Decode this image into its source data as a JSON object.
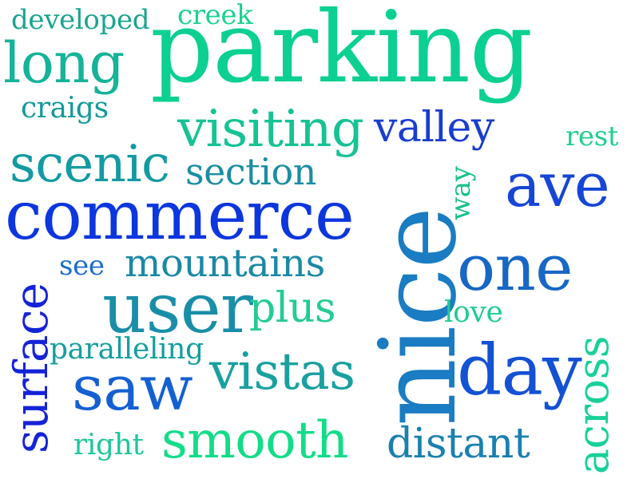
{
  "words": [
    {
      "text": "developed",
      "color": "#1aa58f"
    },
    {
      "text": "creek",
      "color": "#19d38e"
    },
    {
      "text": "parking",
      "color": "#0bd092"
    },
    {
      "text": "long",
      "color": "#15b399"
    },
    {
      "text": "craigs",
      "color": "#139a9a"
    },
    {
      "text": "visiting",
      "color": "#16c394"
    },
    {
      "text": "valley",
      "color": "#1a3dcf"
    },
    {
      "text": "rest",
      "color": "#1fcf8b"
    },
    {
      "text": "scenic",
      "color": "#139aa2"
    },
    {
      "text": "section",
      "color": "#1a8ea2"
    },
    {
      "text": "way",
      "color": "#17c08a"
    },
    {
      "text": "ave",
      "color": "#1646d6"
    },
    {
      "text": "commerce",
      "color": "#0c36de"
    },
    {
      "text": "nice",
      "color": "#1a7cc2"
    },
    {
      "text": "see",
      "color": "#1a6bd0"
    },
    {
      "text": "mountains",
      "color": "#1a89a6"
    },
    {
      "text": "one",
      "color": "#1867c4"
    },
    {
      "text": "surface",
      "color": "#1523d8"
    },
    {
      "text": "user",
      "color": "#1a8ea8"
    },
    {
      "text": "plus",
      "color": "#22cc90"
    },
    {
      "text": "love",
      "color": "#1fcc90"
    },
    {
      "text": "across",
      "color": "#18d19a"
    },
    {
      "text": "paralleling",
      "color": "#139f9e"
    },
    {
      "text": "vistas",
      "color": "#1aa0a0"
    },
    {
      "text": "day",
      "color": "#1452d4"
    },
    {
      "text": "saw",
      "color": "#1460d2"
    },
    {
      "text": "right",
      "color": "#1cc79a"
    },
    {
      "text": "smooth",
      "color": "#11dd88"
    },
    {
      "text": "distant",
      "color": "#1a80b0"
    }
  ]
}
